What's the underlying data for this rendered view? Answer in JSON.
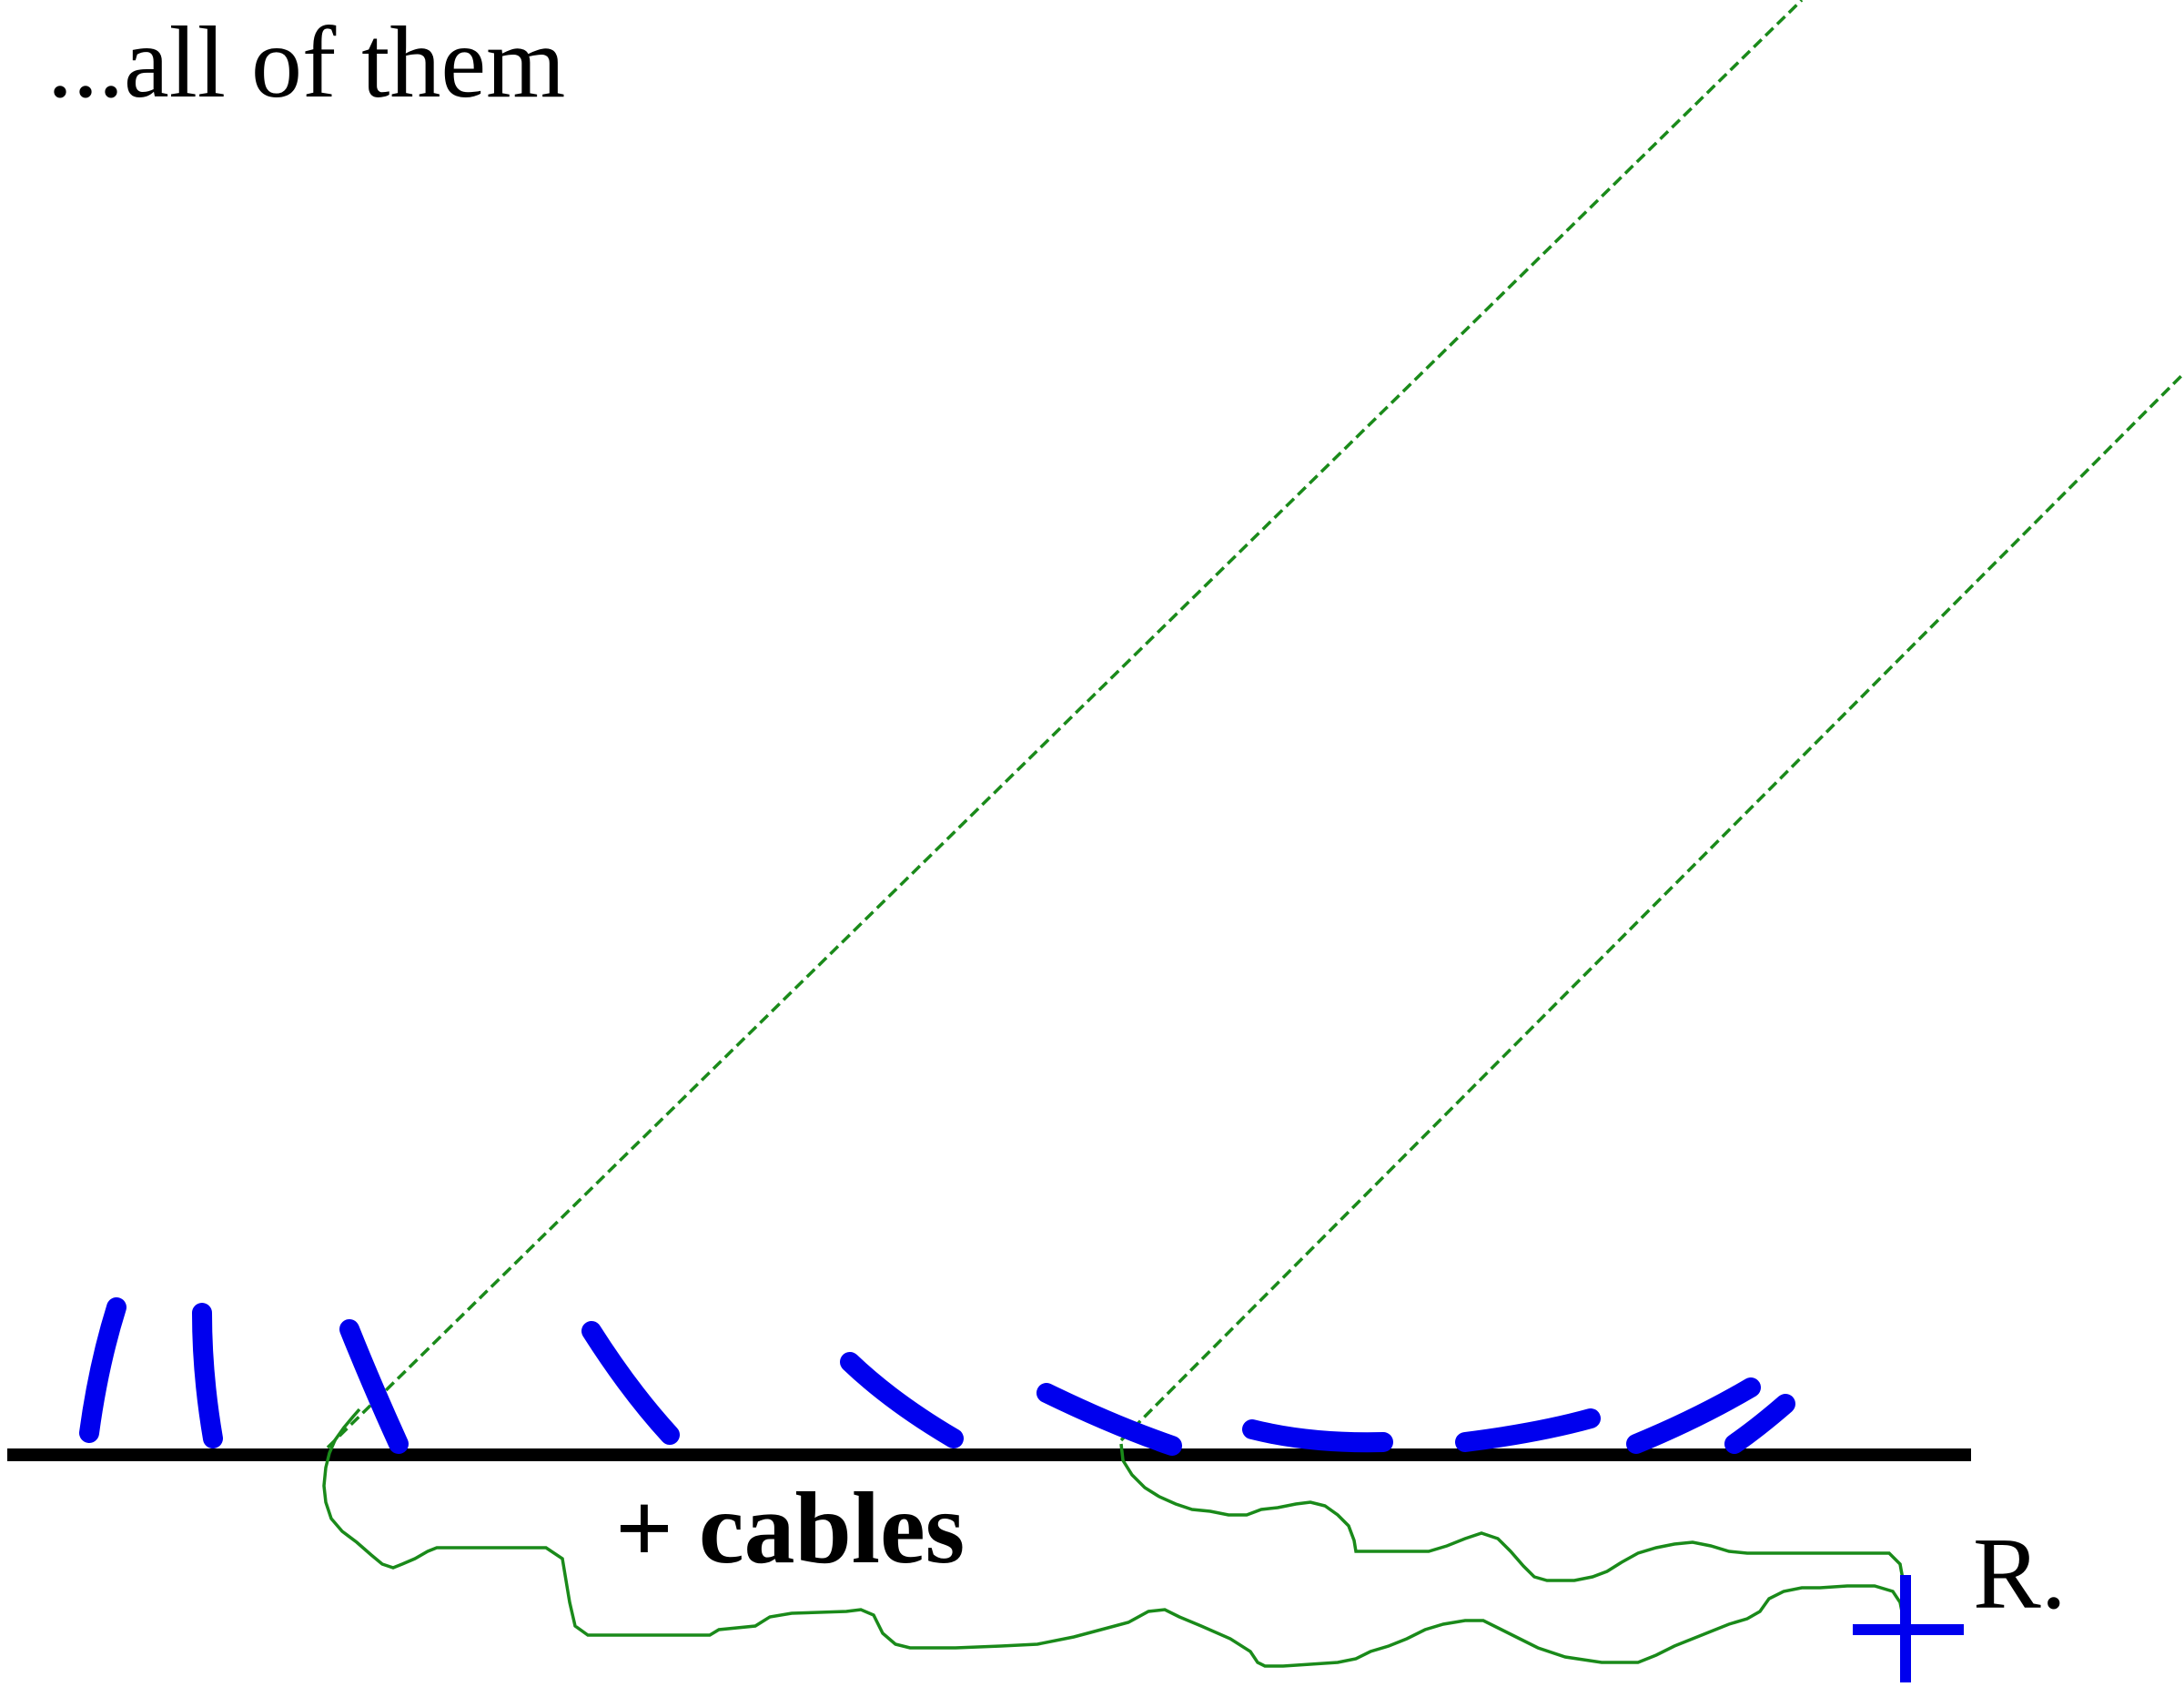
{
  "heading": "...all of them",
  "cables_label": "+ cables",
  "receiver_label": "R.",
  "colors": {
    "segments": "#0000ee",
    "signal": "#1a8a1a",
    "ground": "#000000",
    "text": "#000000"
  },
  "icons": {
    "receiver": "plus-icon"
  }
}
